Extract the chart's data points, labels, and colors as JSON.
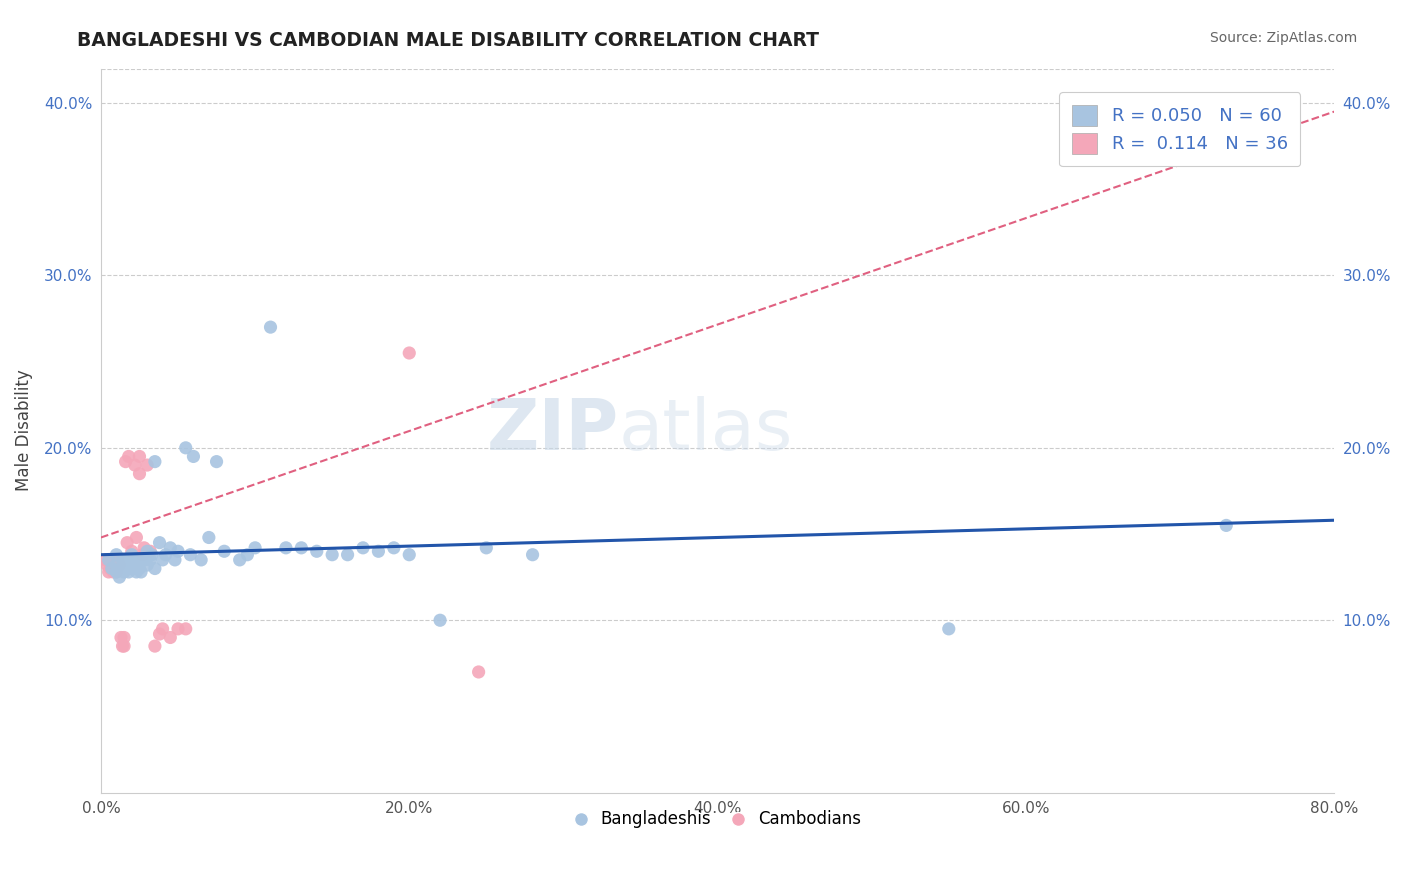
{
  "title": "BANGLADESHI VS CAMBODIAN MALE DISABILITY CORRELATION CHART",
  "source": "Source: ZipAtlas.com",
  "ylabel": "Male Disability",
  "xlabel": "",
  "xlim": [
    0.0,
    0.8
  ],
  "ylim": [
    0.0,
    0.42
  ],
  "yticks": [
    0.1,
    0.2,
    0.3,
    0.4
  ],
  "ytick_labels": [
    "10.0%",
    "20.0%",
    "30.0%",
    "40.0%"
  ],
  "xticks": [
    0.0,
    0.2,
    0.4,
    0.6,
    0.8
  ],
  "xtick_labels": [
    "0.0%",
    "20.0%",
    "40.0%",
    "60.0%",
    "80.0%"
  ],
  "bangladeshi_x": [
    0.005,
    0.007,
    0.01,
    0.01,
    0.01,
    0.012,
    0.013,
    0.014,
    0.015,
    0.015,
    0.017,
    0.018,
    0.018,
    0.019,
    0.02,
    0.02,
    0.022,
    0.023,
    0.024,
    0.025,
    0.025,
    0.026,
    0.028,
    0.03,
    0.03,
    0.032,
    0.033,
    0.035,
    0.035,
    0.038,
    0.04,
    0.042,
    0.045,
    0.048,
    0.05,
    0.055,
    0.058,
    0.06,
    0.065,
    0.07,
    0.075,
    0.08,
    0.09,
    0.095,
    0.1,
    0.11,
    0.12,
    0.13,
    0.14,
    0.15,
    0.16,
    0.17,
    0.18,
    0.19,
    0.2,
    0.22,
    0.25,
    0.28,
    0.55,
    0.73
  ],
  "bangladeshi_y": [
    0.135,
    0.13,
    0.128,
    0.132,
    0.138,
    0.125,
    0.13,
    0.135,
    0.128,
    0.132,
    0.135,
    0.13,
    0.128,
    0.135,
    0.132,
    0.138,
    0.13,
    0.128,
    0.133,
    0.135,
    0.13,
    0.128,
    0.135,
    0.132,
    0.14,
    0.135,
    0.138,
    0.13,
    0.192,
    0.145,
    0.135,
    0.138,
    0.142,
    0.135,
    0.14,
    0.2,
    0.138,
    0.195,
    0.135,
    0.148,
    0.192,
    0.14,
    0.135,
    0.138,
    0.142,
    0.27,
    0.142,
    0.142,
    0.14,
    0.138,
    0.138,
    0.142,
    0.14,
    0.142,
    0.138,
    0.1,
    0.142,
    0.138,
    0.095,
    0.155
  ],
  "cambodian_x": [
    0.003,
    0.004,
    0.005,
    0.006,
    0.007,
    0.008,
    0.008,
    0.009,
    0.01,
    0.01,
    0.011,
    0.012,
    0.013,
    0.014,
    0.015,
    0.015,
    0.016,
    0.017,
    0.018,
    0.02,
    0.022,
    0.023,
    0.025,
    0.025,
    0.027,
    0.028,
    0.03,
    0.032,
    0.035,
    0.038,
    0.04,
    0.045,
    0.05,
    0.055,
    0.2,
    0.245
  ],
  "cambodian_y": [
    0.135,
    0.132,
    0.128,
    0.13,
    0.132,
    0.135,
    0.128,
    0.13,
    0.128,
    0.132,
    0.135,
    0.132,
    0.09,
    0.085,
    0.09,
    0.085,
    0.192,
    0.145,
    0.195,
    0.14,
    0.19,
    0.148,
    0.195,
    0.185,
    0.138,
    0.142,
    0.19,
    0.14,
    0.085,
    0.092,
    0.095,
    0.09,
    0.095,
    0.095,
    0.255,
    0.07
  ],
  "bangladeshi_color": "#a8c4e0",
  "cambodian_color": "#f4a7b9",
  "bangladeshi_line_color": "#2255aa",
  "cambodian_line_color": "#e06080",
  "r_bangladeshi": 0.05,
  "r_cambodian": 0.114,
  "n_bangladeshi": 60,
  "n_cambodian": 36,
  "bangladeshi_trend": [
    0.0,
    0.8,
    0.138,
    0.158
  ],
  "cambodian_trend": [
    0.0,
    0.8,
    0.148,
    0.395
  ],
  "grid_color": "#cccccc",
  "background_color": "#ffffff",
  "watermark_zip": "ZIP",
  "watermark_atlas": "atlas"
}
